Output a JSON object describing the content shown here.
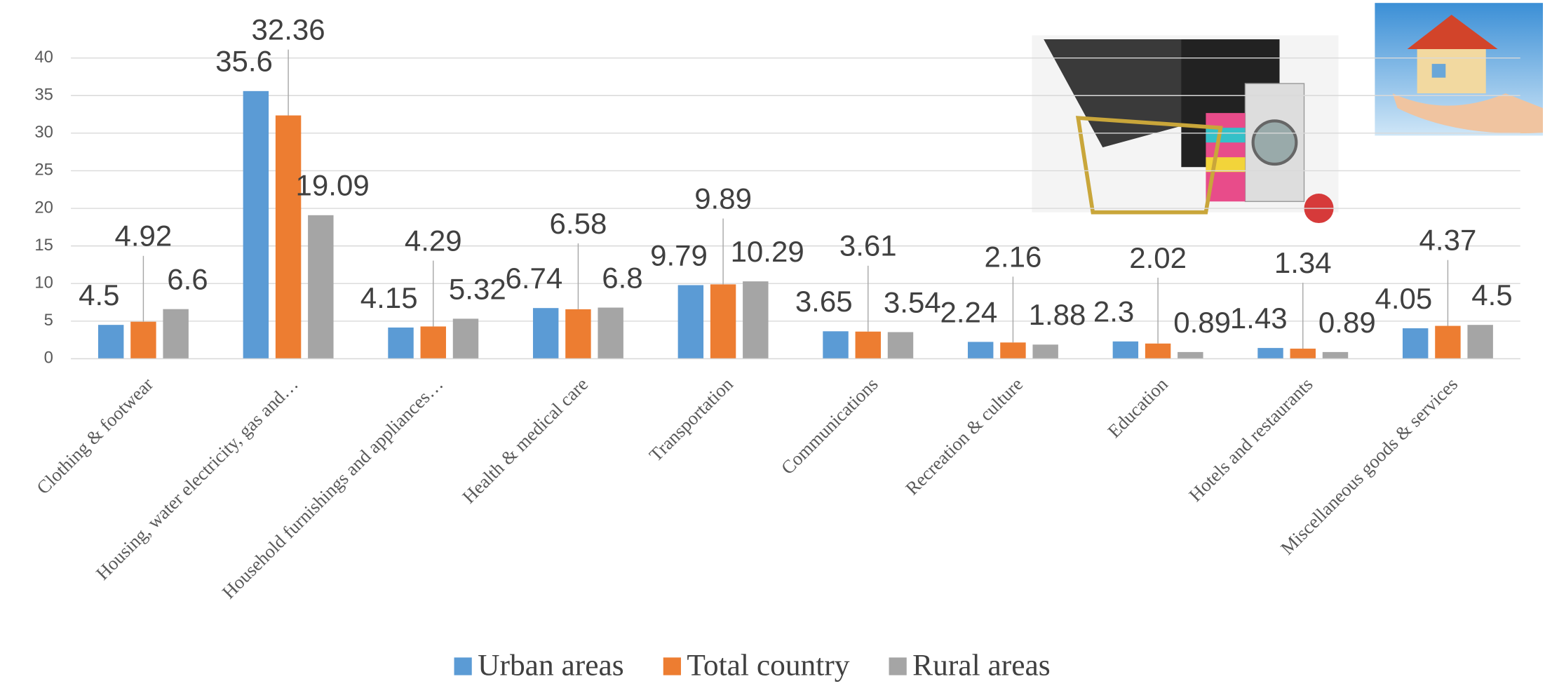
{
  "chart_data": {
    "type": "bar",
    "categories": [
      "Clothing & footwear",
      "Housing, water electricity, gas and…",
      "Household furnishings and appliances…",
      "Health & medical care",
      "Transportation",
      "Communications",
      "Recreation & culture",
      "Education",
      "Hotels and restaurants",
      "Miscellaneous goods & services"
    ],
    "series": [
      {
        "name": "Urban areas",
        "color": "#5b9bd5",
        "values": [
          4.5,
          35.6,
          4.15,
          6.74,
          9.79,
          3.65,
          2.24,
          2.3,
          1.43,
          4.05
        ]
      },
      {
        "name": "Total country",
        "color": "#ed7d31",
        "values": [
          4.92,
          32.36,
          4.29,
          6.58,
          9.89,
          3.61,
          2.16,
          2.02,
          1.34,
          4.37
        ]
      },
      {
        "name": "Rural areas",
        "color": "#a5a5a5",
        "values": [
          6.6,
          19.09,
          5.32,
          6.8,
          10.29,
          3.54,
          1.88,
          0.89,
          0.89,
          4.5
        ]
      }
    ],
    "ylim": [
      0,
      40
    ],
    "yticks": [
      0,
      5,
      10,
      15,
      20,
      25,
      30,
      35,
      40
    ],
    "grid": true,
    "legend": "bottom"
  }
}
